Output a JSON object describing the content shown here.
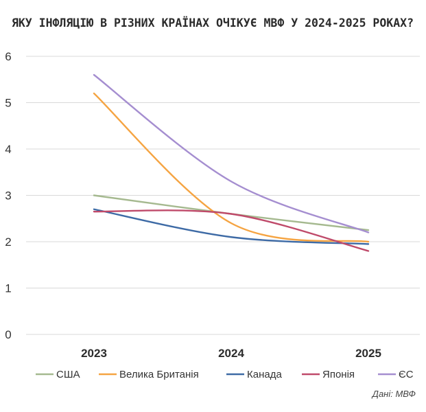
{
  "chart_data": {
    "type": "line",
    "title": "ЯКУ ІНФЛЯЦІЮ В РІЗНИХ КРАЇНАХ ОЧІКУЄ МВФ У 2024-2025 РОКАХ?",
    "categories": [
      "2023",
      "2024",
      "2025"
    ],
    "y_ticks": [
      "0",
      "1",
      "2",
      "3",
      "4",
      "5",
      "6"
    ],
    "ylim": [
      0,
      6
    ],
    "grid": "horizontal",
    "legend_position": "bottom",
    "series": [
      {
        "name": "США",
        "color": "#a5b98f",
        "values": [
          3.0,
          2.6,
          2.25
        ]
      },
      {
        "name": "Велика Британія",
        "color": "#f5a442",
        "values": [
          5.2,
          2.4,
          2.0
        ]
      },
      {
        "name": "Канада",
        "color": "#3d6aa5",
        "values": [
          2.7,
          2.1,
          1.95
        ]
      },
      {
        "name": "Японія",
        "color": "#bf4a6a",
        "values": [
          2.65,
          2.6,
          1.8
        ]
      },
      {
        "name": "ЄС",
        "color": "#a58ed0",
        "values": [
          5.6,
          3.3,
          2.2
        ]
      }
    ],
    "source": "Дані: МВФ"
  }
}
